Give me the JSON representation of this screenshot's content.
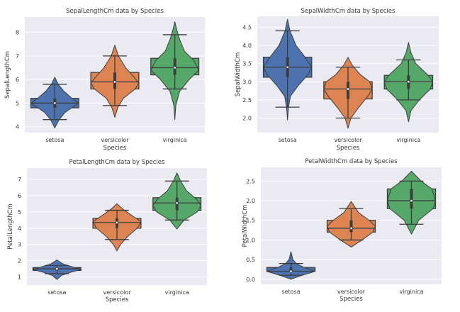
{
  "figure": {
    "background": "#ffffff",
    "plot_bg": "#eaeaf2",
    "grid_color": "#ffffff",
    "edge_color": "#3d3d3d"
  },
  "palette": {
    "setosa": "#4c72b0",
    "versicolor": "#dd8452",
    "virginica": "#55a868"
  },
  "chart_data": [
    {
      "type": "violin+box",
      "title": "SepalLengthCm data by Species",
      "xlabel": "Species",
      "ylabel": "SepalLengthCm",
      "categories": [
        "setosa",
        "versicolor",
        "virginica"
      ],
      "yticks": [
        "4",
        "5",
        "6",
        "7",
        "8"
      ],
      "ytick_values": [
        4,
        5,
        6,
        7,
        8
      ],
      "ylim": [
        3.75,
        8.65
      ],
      "grid": true,
      "series": [
        {
          "name": "setosa",
          "color": "#4c72b0",
          "q1": 4.8,
          "median": 5.0,
          "q3": 5.2,
          "whisker_low": 4.3,
          "whisker_high": 5.8,
          "violin_min": 3.95,
          "violin_max": 6.1,
          "violin_profile": [
            [
              3.95,
              0.0
            ],
            [
              4.3,
              0.18
            ],
            [
              4.6,
              0.42
            ],
            [
              4.8,
              0.7
            ],
            [
              5.0,
              1.0
            ],
            [
              5.2,
              0.72
            ],
            [
              5.5,
              0.38
            ],
            [
              5.8,
              0.14
            ],
            [
              6.1,
              0.0
            ]
          ]
        },
        {
          "name": "versicolor",
          "color": "#dd8452",
          "q1": 5.6,
          "median": 5.9,
          "q3": 6.3,
          "whisker_low": 4.9,
          "whisker_high": 7.0,
          "violin_min": 4.4,
          "violin_max": 7.45,
          "violin_profile": [
            [
              4.4,
              0.0
            ],
            [
              4.8,
              0.12
            ],
            [
              5.2,
              0.35
            ],
            [
              5.6,
              0.85
            ],
            [
              5.85,
              1.0
            ],
            [
              6.1,
              0.8
            ],
            [
              6.5,
              0.45
            ],
            [
              7.0,
              0.15
            ],
            [
              7.45,
              0.0
            ]
          ]
        },
        {
          "name": "virginica",
          "color": "#55a868",
          "q1": 6.2,
          "median": 6.5,
          "q3": 6.9,
          "whisker_low": 5.6,
          "whisker_high": 7.9,
          "violin_min": 4.3,
          "violin_max": 8.45,
          "violin_profile": [
            [
              4.3,
              0.0
            ],
            [
              4.9,
              0.04
            ],
            [
              5.5,
              0.2
            ],
            [
              6.0,
              0.6
            ],
            [
              6.4,
              1.0
            ],
            [
              6.8,
              0.8
            ],
            [
              7.2,
              0.4
            ],
            [
              7.7,
              0.2
            ],
            [
              8.1,
              0.08
            ],
            [
              8.45,
              0.0
            ]
          ]
        }
      ]
    },
    {
      "type": "violin+box",
      "title": "SepalWidthCm data by Species",
      "xlabel": "Species",
      "ylabel": "SepalWidthCm",
      "categories": [
        "setosa",
        "versicolor",
        "virginica"
      ],
      "yticks": [
        "2.0",
        "2.5",
        "3.0",
        "3.5",
        "4.0",
        "4.5"
      ],
      "ytick_values": [
        2.0,
        2.5,
        3.0,
        3.5,
        4.0,
        4.5
      ],
      "ylim": [
        1.6,
        4.8
      ],
      "grid": true,
      "series": [
        {
          "name": "setosa",
          "color": "#4c72b0",
          "q1": 3.125,
          "median": 3.4,
          "q3": 3.675,
          "whisker_low": 2.3,
          "whisker_high": 4.4,
          "violin_min": 1.95,
          "violin_max": 4.72,
          "violin_profile": [
            [
              1.95,
              0.0
            ],
            [
              2.3,
              0.04
            ],
            [
              2.6,
              0.12
            ],
            [
              2.9,
              0.45
            ],
            [
              3.2,
              0.85
            ],
            [
              3.4,
              1.0
            ],
            [
              3.7,
              0.7
            ],
            [
              4.0,
              0.35
            ],
            [
              4.4,
              0.1
            ],
            [
              4.72,
              0.0
            ]
          ]
        },
        {
          "name": "versicolor",
          "color": "#dd8452",
          "q1": 2.525,
          "median": 2.8,
          "q3": 3.0,
          "whisker_low": 2.0,
          "whisker_high": 3.4,
          "violin_min": 1.72,
          "violin_max": 3.67,
          "violin_profile": [
            [
              1.72,
              0.0
            ],
            [
              2.0,
              0.12
            ],
            [
              2.3,
              0.45
            ],
            [
              2.6,
              0.82
            ],
            [
              2.8,
              1.0
            ],
            [
              3.0,
              0.9
            ],
            [
              3.2,
              0.5
            ],
            [
              3.45,
              0.18
            ],
            [
              3.67,
              0.0
            ]
          ]
        },
        {
          "name": "virginica",
          "color": "#55a868",
          "q1": 2.8,
          "median": 3.0,
          "q3": 3.175,
          "whisker_low": 2.5,
          "whisker_high": 3.6,
          "violin_min": 1.9,
          "violin_max": 4.08,
          "violin_profile": [
            [
              1.9,
              0.0
            ],
            [
              2.2,
              0.1
            ],
            [
              2.5,
              0.45
            ],
            [
              2.8,
              0.9
            ],
            [
              3.0,
              1.0
            ],
            [
              3.2,
              0.78
            ],
            [
              3.5,
              0.3
            ],
            [
              3.8,
              0.1
            ],
            [
              4.08,
              0.0
            ]
          ]
        }
      ]
    },
    {
      "type": "violin+box",
      "title": "PetalLengthCm data by Species",
      "xlabel": "Species",
      "ylabel": "PetalLengthCm",
      "categories": [
        "setosa",
        "versicolor",
        "virginica"
      ],
      "yticks": [
        "1",
        "2",
        "3",
        "4",
        "5",
        "6",
        "7"
      ],
      "ytick_values": [
        1,
        2,
        3,
        4,
        5,
        6,
        7
      ],
      "ylim": [
        0.5,
        7.7
      ],
      "grid": true,
      "series": [
        {
          "name": "setosa",
          "color": "#4c72b0",
          "q1": 1.4,
          "median": 1.5,
          "q3": 1.575,
          "whisker_low": 1.2,
          "whisker_high": 1.7,
          "violin_min": 0.85,
          "violin_max": 2.05,
          "violin_profile": [
            [
              0.85,
              0.0
            ],
            [
              1.1,
              0.2
            ],
            [
              1.3,
              0.6
            ],
            [
              1.45,
              1.0
            ],
            [
              1.6,
              0.7
            ],
            [
              1.8,
              0.25
            ],
            [
              2.05,
              0.0
            ]
          ]
        },
        {
          "name": "versicolor",
          "color": "#dd8452",
          "q1": 4.0,
          "median": 4.35,
          "q3": 4.6,
          "whisker_low": 3.3,
          "whisker_high": 5.1,
          "violin_min": 2.6,
          "violin_max": 5.5,
          "violin_profile": [
            [
              2.6,
              0.0
            ],
            [
              3.0,
              0.15
            ],
            [
              3.5,
              0.45
            ],
            [
              4.0,
              0.85
            ],
            [
              4.4,
              1.0
            ],
            [
              4.8,
              0.6
            ],
            [
              5.2,
              0.22
            ],
            [
              5.5,
              0.0
            ]
          ]
        },
        {
          "name": "virginica",
          "color": "#55a868",
          "q1": 5.1,
          "median": 5.55,
          "q3": 5.875,
          "whisker_low": 4.5,
          "whisker_high": 6.9,
          "violin_min": 3.95,
          "violin_max": 7.4,
          "violin_profile": [
            [
              3.95,
              0.0
            ],
            [
              4.5,
              0.3
            ],
            [
              5.0,
              0.85
            ],
            [
              5.4,
              1.0
            ],
            [
              5.8,
              0.8
            ],
            [
              6.3,
              0.4
            ],
            [
              6.9,
              0.15
            ],
            [
              7.4,
              0.0
            ]
          ]
        }
      ]
    },
    {
      "type": "violin+box",
      "title": "PetalWidthCm data by Species",
      "xlabel": "Species",
      "ylabel": "PetalWidthCm",
      "categories": [
        "setosa",
        "versicolor",
        "virginica"
      ],
      "yticks": [
        "0.0",
        "0.5",
        "1.0",
        "1.5",
        "2.0",
        "2.5"
      ],
      "ytick_values": [
        0.0,
        0.5,
        1.0,
        1.5,
        2.0,
        2.5
      ],
      "ylim": [
        -0.13,
        2.85
      ],
      "grid": true,
      "series": [
        {
          "name": "setosa",
          "color": "#4c72b0",
          "q1": 0.2,
          "median": 0.2,
          "q3": 0.3,
          "whisker_low": 0.1,
          "whisker_high": 0.4,
          "violin_min": 0.0,
          "violin_max": 0.7,
          "violin_profile": [
            [
              0.0,
              0.0
            ],
            [
              0.1,
              0.45
            ],
            [
              0.2,
              1.0
            ],
            [
              0.3,
              0.55
            ],
            [
              0.4,
              0.22
            ],
            [
              0.5,
              0.08
            ],
            [
              0.7,
              0.0
            ]
          ]
        },
        {
          "name": "versicolor",
          "color": "#dd8452",
          "q1": 1.2,
          "median": 1.3,
          "q3": 1.5,
          "whisker_low": 1.0,
          "whisker_high": 1.8,
          "violin_min": 0.82,
          "violin_max": 1.98,
          "violin_profile": [
            [
              0.82,
              0.0
            ],
            [
              1.0,
              0.45
            ],
            [
              1.2,
              0.9
            ],
            [
              1.35,
              1.0
            ],
            [
              1.5,
              0.75
            ],
            [
              1.7,
              0.3
            ],
            [
              1.98,
              0.0
            ]
          ]
        },
        {
          "name": "virginica",
          "color": "#55a868",
          "q1": 1.8,
          "median": 2.0,
          "q3": 2.3,
          "whisker_low": 1.4,
          "whisker_high": 2.5,
          "violin_min": 1.15,
          "violin_max": 2.75,
          "violin_profile": [
            [
              1.15,
              0.0
            ],
            [
              1.5,
              0.3
            ],
            [
              1.8,
              0.9
            ],
            [
              2.0,
              1.0
            ],
            [
              2.3,
              0.85
            ],
            [
              2.5,
              0.4
            ],
            [
              2.75,
              0.0
            ]
          ]
        }
      ]
    }
  ]
}
